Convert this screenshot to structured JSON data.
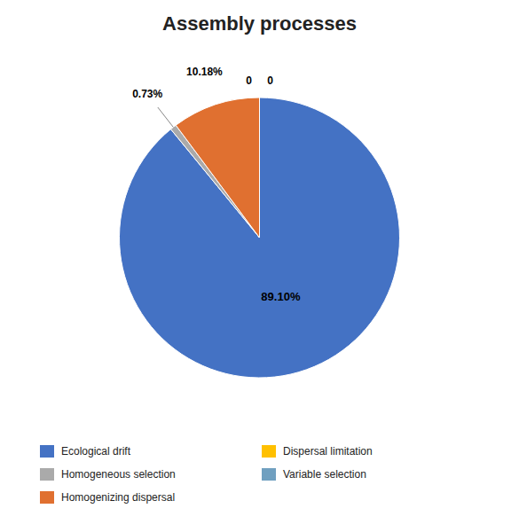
{
  "chart_data": {
    "type": "pie",
    "title": "Assembly processes",
    "categories": [
      "Ecological drift",
      "Homogeneous selection",
      "Homogenizing dispersal",
      "Dispersal limitation",
      "Variable selection"
    ],
    "values": [
      89.1,
      0.73,
      10.18,
      0.0,
      0.0
    ],
    "value_labels": [
      "89.10%",
      "0.73%",
      "10.18%",
      "0",
      "0"
    ],
    "colors": [
      "#4472C4",
      "#AAAAAA",
      "#E07030",
      "#FFC000",
      "#70A0C0"
    ],
    "data_labels": true,
    "legend": "bottom"
  }
}
